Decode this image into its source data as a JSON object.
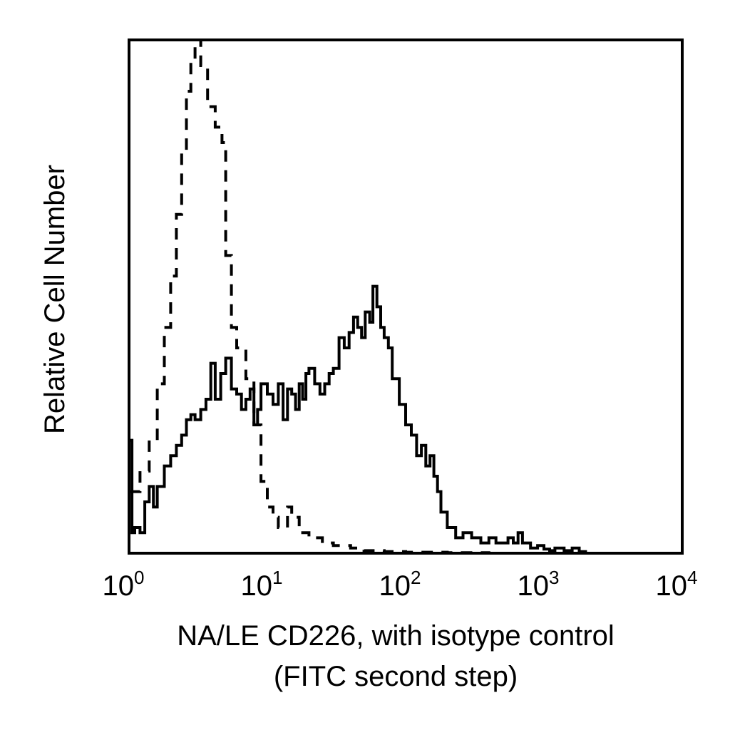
{
  "chart_data": {
    "type": "line",
    "title": "",
    "xlabel": "NA/LE CD226, with isotype control",
    "xlabel_line2": "(FITC second step)",
    "ylabel": "Relative Cell Number",
    "x_scale": "log",
    "xlim": [
      1,
      10000
    ],
    "ylim": [
      0,
      100
    ],
    "grid": false,
    "legend": "none",
    "x_ticks": [
      {
        "value": 1,
        "base": "10",
        "exp": "0"
      },
      {
        "value": 10,
        "base": "10",
        "exp": "1"
      },
      {
        "value": 100,
        "base": "10",
        "exp": "2"
      },
      {
        "value": 1000,
        "base": "10",
        "exp": "3"
      },
      {
        "value": 10000,
        "base": "10",
        "exp": "4"
      }
    ],
    "series": [
      {
        "style": "dashed",
        "color": "#000000",
        "points": [
          [
            1.0,
            12
          ],
          [
            1.2,
            16
          ],
          [
            1.4,
            22
          ],
          [
            1.6,
            33
          ],
          [
            1.8,
            44
          ],
          [
            2.0,
            54
          ],
          [
            2.2,
            66
          ],
          [
            2.4,
            78
          ],
          [
            2.6,
            90
          ],
          [
            2.8,
            96
          ],
          [
            3.0,
            100
          ],
          [
            3.3,
            95
          ],
          [
            3.7,
            87
          ],
          [
            4.2,
            83
          ],
          [
            4.7,
            80
          ],
          [
            5.0,
            58
          ],
          [
            5.5,
            44
          ],
          [
            6.0,
            40
          ],
          [
            7.0,
            34
          ],
          [
            8.0,
            25
          ],
          [
            9.0,
            14
          ],
          [
            10.0,
            9
          ],
          [
            11.0,
            7
          ],
          [
            12.0,
            5
          ],
          [
            14.0,
            9
          ],
          [
            15.0,
            7
          ],
          [
            17.0,
            4
          ],
          [
            20.0,
            3
          ],
          [
            25.0,
            2
          ],
          [
            30.0,
            1.5
          ],
          [
            40.0,
            1
          ],
          [
            50.0,
            0.5
          ],
          [
            70.0,
            0.3
          ],
          [
            100.0,
            0.2
          ],
          [
            200.0,
            0.1
          ],
          [
            400.0,
            0
          ],
          [
            1000.0,
            0
          ]
        ]
      },
      {
        "style": "solid",
        "color": "#000000",
        "points": [
          [
            1.0,
            22
          ],
          [
            1.05,
            4
          ],
          [
            1.1,
            5
          ],
          [
            1.2,
            4
          ],
          [
            1.3,
            10
          ],
          [
            1.4,
            13
          ],
          [
            1.5,
            9
          ],
          [
            1.6,
            13
          ],
          [
            1.8,
            17
          ],
          [
            2.0,
            19
          ],
          [
            2.2,
            21
          ],
          [
            2.4,
            23
          ],
          [
            2.6,
            26
          ],
          [
            2.8,
            27
          ],
          [
            3.0,
            26
          ],
          [
            3.3,
            28
          ],
          [
            3.6,
            30
          ],
          [
            3.9,
            37
          ],
          [
            4.2,
            30
          ],
          [
            4.6,
            35
          ],
          [
            5.0,
            38
          ],
          [
            5.5,
            32
          ],
          [
            6.0,
            31
          ],
          [
            6.5,
            28
          ],
          [
            7.0,
            30
          ],
          [
            7.5,
            32
          ],
          [
            8.0,
            25
          ],
          [
            8.5,
            28
          ],
          [
            9.0,
            33
          ],
          [
            10.0,
            31
          ],
          [
            11.0,
            29
          ],
          [
            12.0,
            33
          ],
          [
            13.0,
            26
          ],
          [
            14.0,
            32
          ],
          [
            15.0,
            31
          ],
          [
            16.0,
            28
          ],
          [
            17.0,
            33
          ],
          [
            18.0,
            30
          ],
          [
            19.0,
            35
          ],
          [
            20.0,
            36
          ],
          [
            22.0,
            33
          ],
          [
            24.0,
            31
          ],
          [
            26.0,
            33
          ],
          [
            28.0,
            35
          ],
          [
            30.0,
            36
          ],
          [
            33.0,
            42
          ],
          [
            36.0,
            40
          ],
          [
            39.0,
            43
          ],
          [
            42.0,
            46
          ],
          [
            45.0,
            44
          ],
          [
            48.0,
            42
          ],
          [
            51.0,
            47
          ],
          [
            55.0,
            45
          ],
          [
            58.0,
            52
          ],
          [
            62.0,
            48
          ],
          [
            66.0,
            44
          ],
          [
            70.0,
            42
          ],
          [
            75.0,
            40
          ],
          [
            80.0,
            34
          ],
          [
            90.0,
            29
          ],
          [
            100.0,
            25
          ],
          [
            110.0,
            23
          ],
          [
            120.0,
            19
          ],
          [
            130.0,
            21
          ],
          [
            140.0,
            17
          ],
          [
            150.0,
            19
          ],
          [
            160.0,
            15
          ],
          [
            170.0,
            12
          ],
          [
            180.0,
            8
          ],
          [
            200.0,
            5
          ],
          [
            230.0,
            3
          ],
          [
            260.0,
            4
          ],
          [
            300.0,
            3
          ],
          [
            350.0,
            2
          ],
          [
            400.0,
            3
          ],
          [
            450.0,
            2
          ],
          [
            500.0,
            2
          ],
          [
            550.0,
            3
          ],
          [
            600.0,
            2
          ],
          [
            650.0,
            4
          ],
          [
            700.0,
            2
          ],
          [
            800.0,
            1
          ],
          [
            900.0,
            1.5
          ],
          [
            1000.0,
            0.8
          ],
          [
            1100.0,
            0.5
          ],
          [
            1200.0,
            1
          ],
          [
            1400.0,
            0.5
          ],
          [
            1600.0,
            1
          ],
          [
            1800.0,
            0.3
          ],
          [
            2000.0,
            0
          ],
          [
            10000.0,
            0
          ]
        ]
      }
    ]
  }
}
